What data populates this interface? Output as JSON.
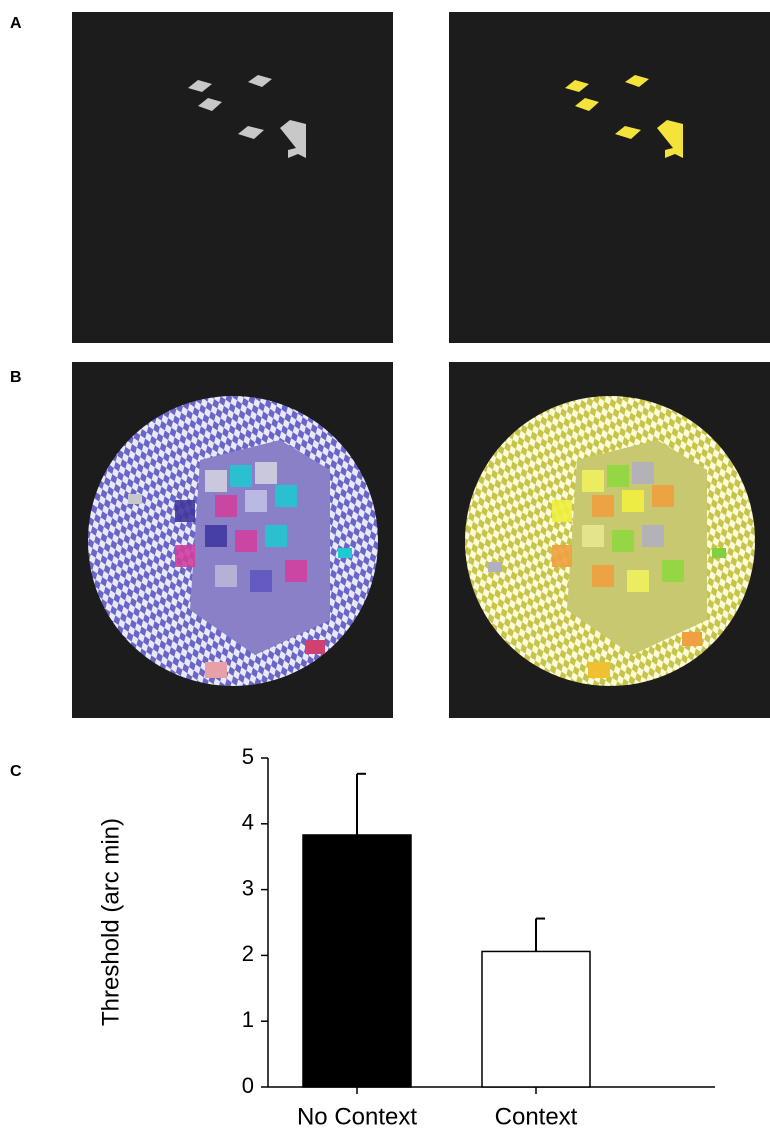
{
  "panel_labels": [
    "A",
    "B",
    "C"
  ],
  "chart_data": {
    "type": "bar",
    "y_label": "Threshold (arc min)",
    "categories": [
      "No Context",
      "Context"
    ],
    "values": [
      3.83,
      2.06
    ],
    "errors": [
      0.93,
      0.5
    ],
    "colors": [
      "#000000",
      "#ffffff"
    ],
    "ylim": [
      0,
      5
    ],
    "yticks": [
      0,
      1,
      2,
      3,
      4,
      5
    ]
  }
}
